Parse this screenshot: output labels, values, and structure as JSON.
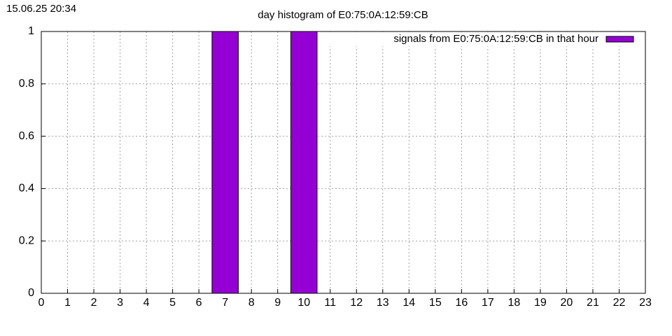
{
  "chart_data": {
    "type": "bar",
    "annotation": "15.06.25 20:34",
    "title": "day histogram of E0:75:0A:12:59:CB",
    "x": [
      0,
      1,
      2,
      3,
      4,
      5,
      6,
      7,
      8,
      9,
      10,
      11,
      12,
      13,
      14,
      15,
      16,
      17,
      18,
      19,
      20,
      21,
      22,
      23
    ],
    "series": [
      {
        "name": "signals from E0:75:0A:12:59:CB in that hour",
        "color": "#9400d3",
        "values": [
          0,
          0,
          0,
          0,
          0,
          0,
          0,
          1,
          0,
          0,
          1,
          0,
          0,
          0,
          0,
          0,
          0,
          0,
          0,
          0,
          0,
          0,
          0,
          0
        ]
      }
    ],
    "xlim": [
      0,
      23
    ],
    "xticks": [
      0,
      1,
      2,
      3,
      4,
      5,
      6,
      7,
      8,
      9,
      10,
      11,
      12,
      13,
      14,
      15,
      16,
      17,
      18,
      19,
      20,
      21,
      22,
      23
    ],
    "ylim": [
      0,
      1
    ],
    "yticks": [
      0,
      0.2,
      0.4,
      0.6,
      0.8,
      1
    ],
    "grid": true,
    "legend": "top-right"
  }
}
